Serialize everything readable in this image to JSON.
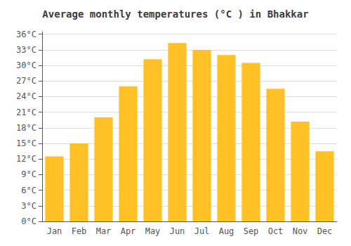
{
  "chart_data": {
    "type": "bar",
    "title": "Average monthly temperatures (°C ) in Bhakkar",
    "categories": [
      "Jan",
      "Feb",
      "Mar",
      "Apr",
      "May",
      "Jun",
      "Jul",
      "Aug",
      "Sep",
      "Oct",
      "Nov",
      "Dec"
    ],
    "values": [
      12.5,
      15.0,
      20.0,
      26.0,
      31.2,
      34.3,
      33.0,
      32.0,
      30.5,
      25.5,
      19.2,
      13.5
    ],
    "color": "#FFC125",
    "ylim": [
      0,
      36.5
    ],
    "yticks": [
      {
        "value": 0,
        "label": "0°C"
      },
      {
        "value": 3,
        "label": "3°C"
      },
      {
        "value": 6,
        "label": "6°C"
      },
      {
        "value": 9,
        "label": "9°C"
      },
      {
        "value": 12,
        "label": "12°C"
      },
      {
        "value": 15,
        "label": "15°C"
      },
      {
        "value": 18,
        "label": "18°C"
      },
      {
        "value": 21,
        "label": "21°C"
      },
      {
        "value": 24,
        "label": "24°C"
      },
      {
        "value": 27,
        "label": "27°C"
      },
      {
        "value": 30,
        "label": "30°C"
      },
      {
        "value": 33,
        "label": "33°C"
      },
      {
        "value": 36,
        "label": "36°C"
      }
    ],
    "grid": true
  }
}
